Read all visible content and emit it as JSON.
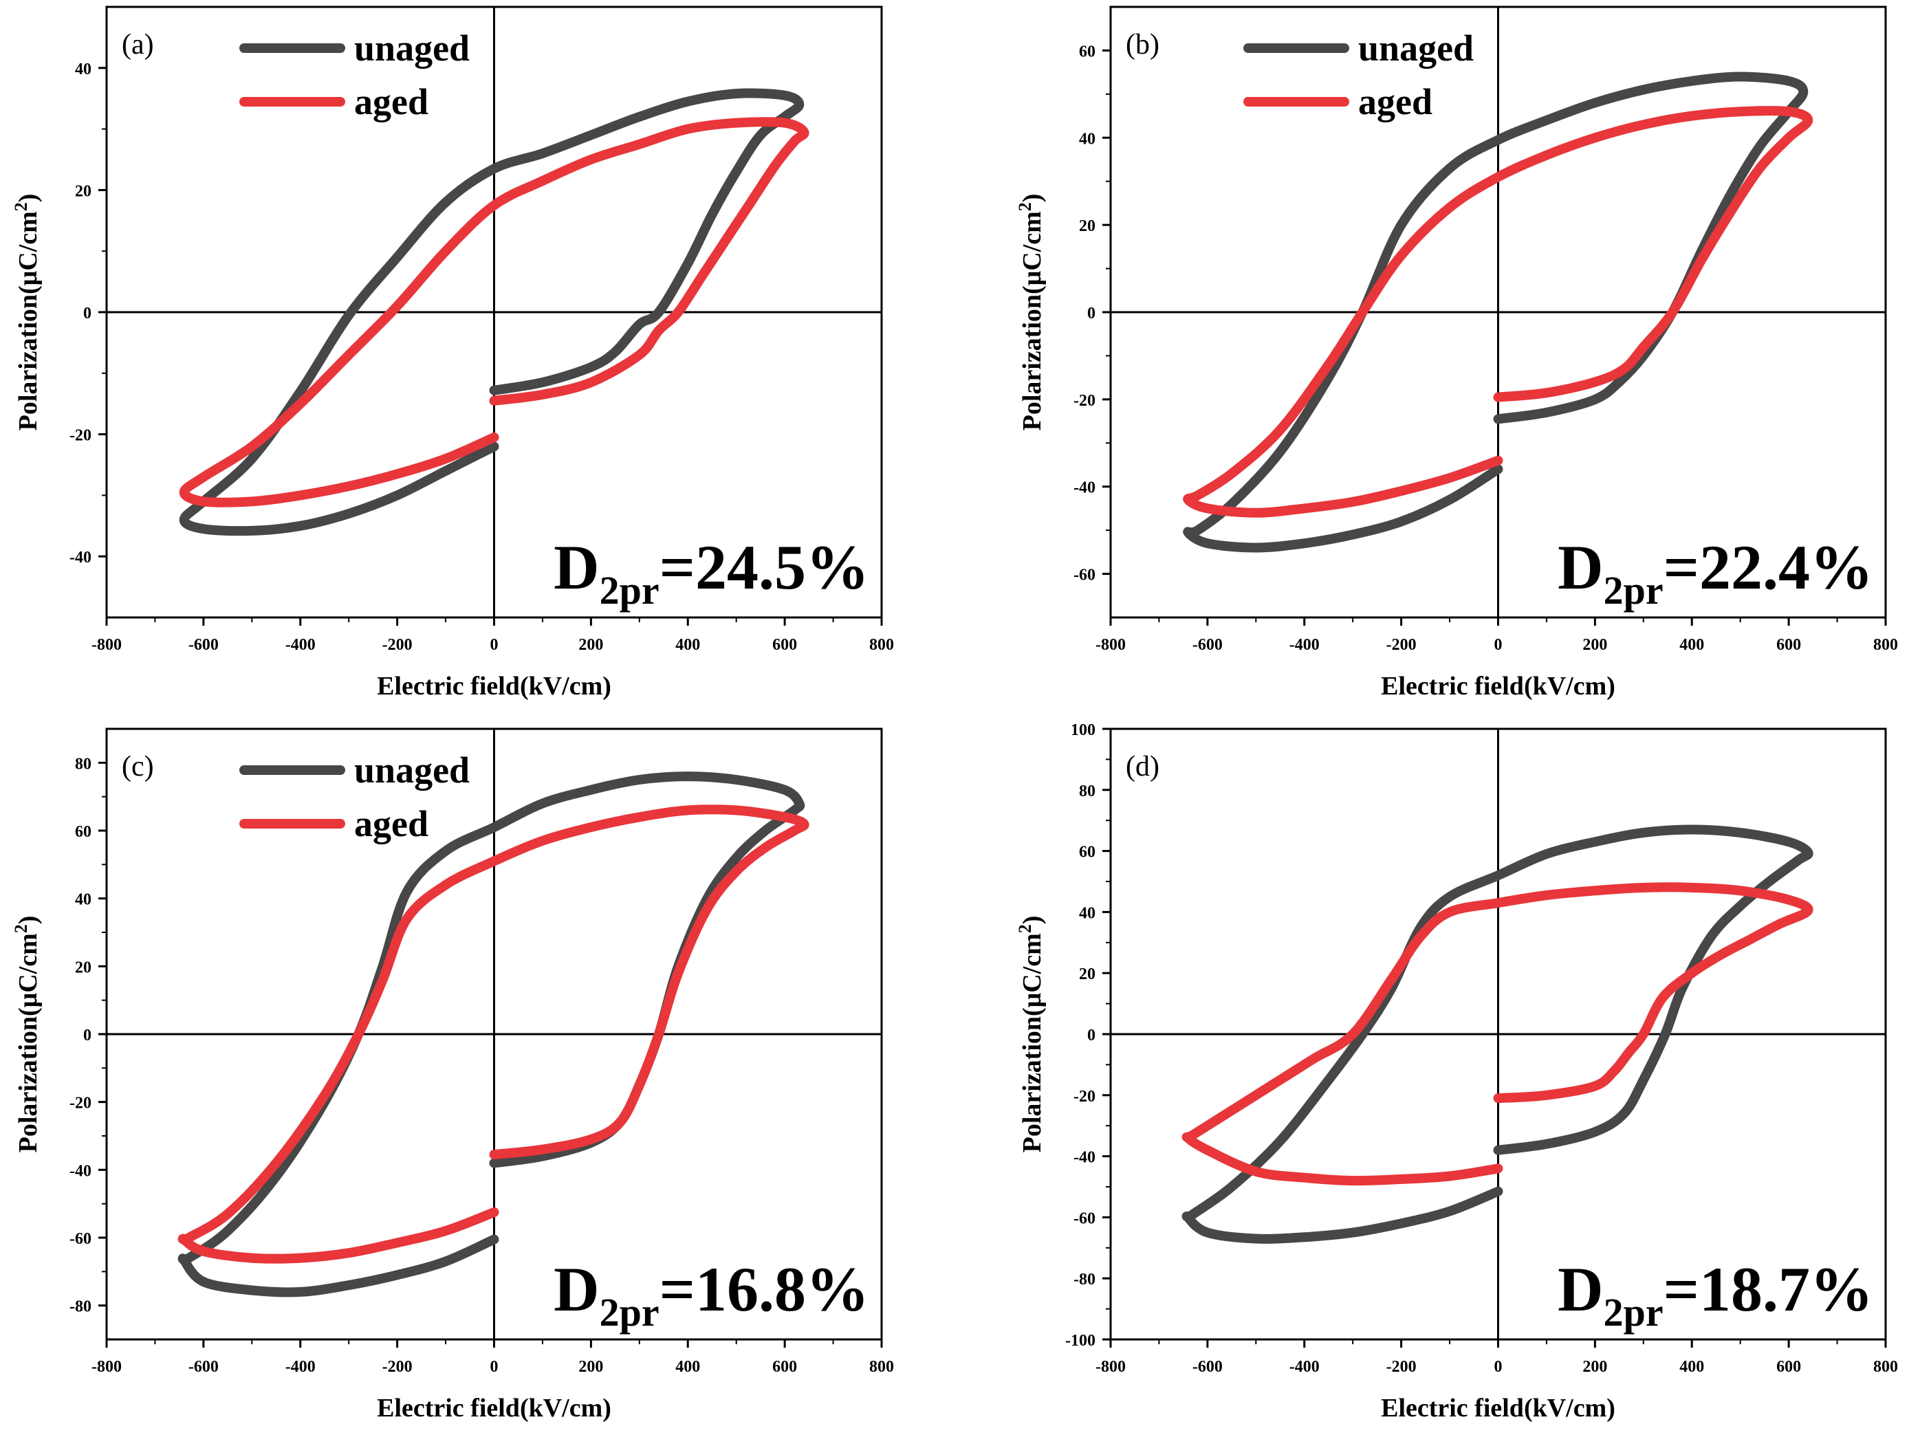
{
  "colors": {
    "unaged": "#474747",
    "aged": "#e8363a",
    "axis": "#000000"
  },
  "chart_data": [
    {
      "type": "line",
      "panel_label": "(a)",
      "xlabel": "Electric field(kV/cm)",
      "ylabel_prefix": "Polarization(μC/cm",
      "ylabel_sup": "2",
      "ylabel_suffix": ")",
      "xlim": [
        -800,
        800
      ],
      "ylim": [
        -50,
        50
      ],
      "xticks": [
        -800,
        -600,
        -400,
        -200,
        0,
        200,
        400,
        600,
        800
      ],
      "yticks": [
        -40,
        -20,
        0,
        20,
        40
      ],
      "legend": {
        "position": "top-left",
        "entries": [
          "unaged",
          "aged"
        ]
      },
      "annotation": {
        "main": "D",
        "sub": "2pr",
        "value": "=24.5%"
      },
      "series": [
        {
          "name": "unaged",
          "x": [
            0,
            100,
            200,
            250,
            300,
            340,
            400,
            450,
            500,
            550,
            600,
            630,
            600,
            500,
            400,
            300,
            200,
            100,
            0,
            -100,
            -200,
            -300,
            -400,
            -500,
            -600,
            -640,
            -600,
            -500,
            -400,
            -300,
            -200,
            -100,
            0
          ],
          "y": [
            -12.8,
            -11.5,
            -9,
            -6.5,
            -2,
            0,
            8,
            16,
            23,
            29,
            32,
            34,
            35.5,
            35.8,
            34.5,
            32,
            29,
            26,
            23.5,
            18,
            9,
            -0.5,
            -13,
            -24,
            -31,
            -34,
            -35.5,
            -35.8,
            -35,
            -33,
            -30,
            -26,
            -22
          ]
        },
        {
          "name": "aged",
          "x": [
            0,
            100,
            200,
            300,
            340,
            380,
            430,
            480,
            530,
            580,
            620,
            640,
            600,
            500,
            400,
            300,
            200,
            100,
            0,
            -100,
            -200,
            -300,
            -400,
            -500,
            -600,
            -640,
            -600,
            -500,
            -400,
            -300,
            -200,
            -100,
            0
          ],
          "y": [
            -14.5,
            -13.5,
            -11.5,
            -7,
            -3,
            0,
            6,
            12,
            18,
            24,
            28,
            29.5,
            31,
            31,
            30,
            27.5,
            25,
            21.5,
            17.5,
            10,
            1,
            -7,
            -15,
            -22,
            -27,
            -29.5,
            -31,
            -31,
            -30,
            -28.5,
            -26.5,
            -24,
            -20.5
          ]
        }
      ]
    },
    {
      "type": "line",
      "panel_label": "(b)",
      "xlabel": "Electric field(kV/cm)",
      "ylabel_prefix": "Polarization(μC/cm",
      "ylabel_sup": "2",
      "ylabel_suffix": ")",
      "xlim": [
        -800,
        800
      ],
      "ylim": [
        -70,
        70
      ],
      "xticks": [
        -800,
        -600,
        -400,
        -200,
        0,
        200,
        400,
        600,
        800
      ],
      "yticks": [
        -60,
        -40,
        -20,
        0,
        20,
        40,
        60
      ],
      "legend": {
        "position": "top-left",
        "entries": [
          "unaged",
          "aged"
        ]
      },
      "annotation": {
        "main": "D",
        "sub": "2pr",
        "value": "=22.4%"
      },
      "series": [
        {
          "name": "unaged",
          "x": [
            0,
            100,
            200,
            250,
            300,
            360,
            420,
            480,
            540,
            600,
            630,
            600,
            500,
            400,
            300,
            200,
            100,
            0,
            -100,
            -200,
            -280,
            -350,
            -450,
            -550,
            -620,
            -640,
            -600,
            -500,
            -400,
            -300,
            -200,
            -100,
            0
          ],
          "y": [
            -24.5,
            -23,
            -20,
            -16,
            -10,
            0,
            14,
            27,
            38,
            46,
            50.5,
            53,
            54,
            53,
            51,
            48,
            44,
            39.5,
            33,
            20,
            0,
            -15,
            -32,
            -44,
            -50,
            -50.5,
            -53,
            -54,
            -53,
            -51,
            -48,
            -43,
            -36
          ]
        },
        {
          "name": "aged",
          "x": [
            0,
            100,
            200,
            260,
            300,
            360,
            420,
            480,
            540,
            600,
            640,
            600,
            500,
            400,
            300,
            200,
            100,
            0,
            -100,
            -200,
            -280,
            -350,
            -450,
            -550,
            -620,
            -640,
            -600,
            -500,
            -400,
            -300,
            -200,
            -100,
            0
          ],
          "y": [
            -19.5,
            -18.5,
            -16,
            -13,
            -8,
            0,
            12,
            23,
            33,
            40,
            44,
            46,
            46,
            45,
            43,
            40,
            36,
            31,
            24,
            13,
            0,
            -12,
            -27,
            -37,
            -42,
            -43,
            -45,
            -46,
            -45,
            -43.5,
            -41,
            -38,
            -34
          ]
        }
      ]
    },
    {
      "type": "line",
      "panel_label": "(c)",
      "xlabel": "Electric field(kV/cm)",
      "ylabel_prefix": "Polarization(μC/cm",
      "ylabel_sup": "2",
      "ylabel_suffix": ")",
      "xlim": [
        -800,
        800
      ],
      "ylim": [
        -90,
        90
      ],
      "xticks": [
        -800,
        -600,
        -400,
        -200,
        0,
        200,
        400,
        600,
        800
      ],
      "yticks": [
        -80,
        -60,
        -40,
        -20,
        0,
        20,
        40,
        60,
        80
      ],
      "legend": {
        "position": "top-left",
        "entries": [
          "unaged",
          "aged"
        ]
      },
      "annotation": {
        "main": "D",
        "sub": "2pr",
        "value": "=16.8%"
      },
      "series": [
        {
          "name": "unaged",
          "x": [
            0,
            100,
            200,
            260,
            300,
            340,
            380,
            440,
            500,
            560,
            620,
            630,
            600,
            500,
            400,
            300,
            200,
            100,
            0,
            -100,
            -180,
            -230,
            -280,
            -350,
            -450,
            -550,
            -630,
            -640,
            -600,
            -500,
            -400,
            -300,
            -200,
            -100,
            0
          ],
          "y": [
            -38,
            -36,
            -32,
            -26,
            -15,
            0,
            20,
            40,
            52,
            60,
            66,
            68,
            72,
            75,
            76,
            75,
            72,
            68,
            61,
            54,
            42,
            20,
            0,
            -20,
            -42,
            -58,
            -66,
            -66.5,
            -73,
            -75.5,
            -76,
            -74,
            -71,
            -67,
            -60.5
          ]
        },
        {
          "name": "aged",
          "x": [
            0,
            100,
            200,
            260,
            300,
            340,
            380,
            440,
            500,
            560,
            620,
            640,
            600,
            500,
            400,
            300,
            200,
            100,
            0,
            -100,
            -180,
            -230,
            -280,
            -350,
            -450,
            -550,
            -630,
            -640,
            -600,
            -500,
            -400,
            -300,
            -200,
            -100,
            0
          ],
          "y": [
            -35.5,
            -34,
            -31,
            -26,
            -15,
            0,
            18,
            37,
            48,
            55,
            60,
            62,
            64,
            66,
            66,
            64,
            61,
            57,
            51,
            44,
            34,
            16,
            0,
            -18,
            -38,
            -53,
            -60,
            -60.5,
            -64,
            -66,
            -66,
            -64.5,
            -61.5,
            -58,
            -52.5
          ]
        }
      ]
    },
    {
      "type": "line",
      "panel_label": "(d)",
      "xlabel": "Electric field(kV/cm)",
      "ylabel_prefix": "Polarization(μC/cm",
      "ylabel_sup": "2",
      "ylabel_suffix": ")",
      "xlim": [
        -800,
        800
      ],
      "ylim": [
        -100,
        100
      ],
      "xticks": [
        -800,
        -600,
        -400,
        -200,
        0,
        200,
        400,
        600,
        800
      ],
      "yticks": [
        -100,
        -80,
        -60,
        -40,
        -20,
        0,
        20,
        40,
        60,
        80,
        100
      ],
      "legend": {
        "position": "none",
        "entries": []
      },
      "annotation": {
        "main": "D",
        "sub": "2pr",
        "value": "=18.7%"
      },
      "series": [
        {
          "name": "unaged",
          "x": [
            0,
            100,
            200,
            260,
            300,
            345,
            380,
            440,
            500,
            560,
            620,
            640,
            600,
            500,
            400,
            300,
            200,
            100,
            0,
            -100,
            -160,
            -220,
            -280,
            -350,
            -450,
            -550,
            -630,
            -640,
            -600,
            -500,
            -400,
            -300,
            -200,
            -100,
            0
          ],
          "y": [
            -38,
            -36,
            -32,
            -26,
            -15,
            0,
            15,
            32,
            42,
            50,
            57,
            59.5,
            63,
            66,
            67,
            66,
            63,
            59,
            52,
            45,
            35,
            15,
            0,
            -15,
            -35,
            -50,
            -59,
            -60,
            -65,
            -67,
            -66.5,
            -65,
            -62,
            -58,
            -51.5
          ]
        },
        {
          "name": "aged",
          "x": [
            0,
            100,
            200,
            240,
            270,
            300,
            340,
            400,
            460,
            520,
            580,
            640,
            600,
            500,
            400,
            300,
            200,
            100,
            0,
            -100,
            -160,
            -220,
            -300,
            -380,
            -450,
            -550,
            -630,
            -640,
            -600,
            -500,
            -400,
            -300,
            -200,
            -100,
            0
          ],
          "y": [
            -21,
            -20,
            -17,
            -12,
            -6,
            0,
            12,
            20,
            26,
            31,
            36,
            40.5,
            44,
            47,
            48,
            48,
            47,
            45.5,
            43,
            40,
            32,
            18,
            0,
            -8,
            -15,
            -25,
            -33,
            -34,
            -38,
            -45,
            -47,
            -48,
            -47.5,
            -46.5,
            -44
          ]
        }
      ]
    }
  ]
}
